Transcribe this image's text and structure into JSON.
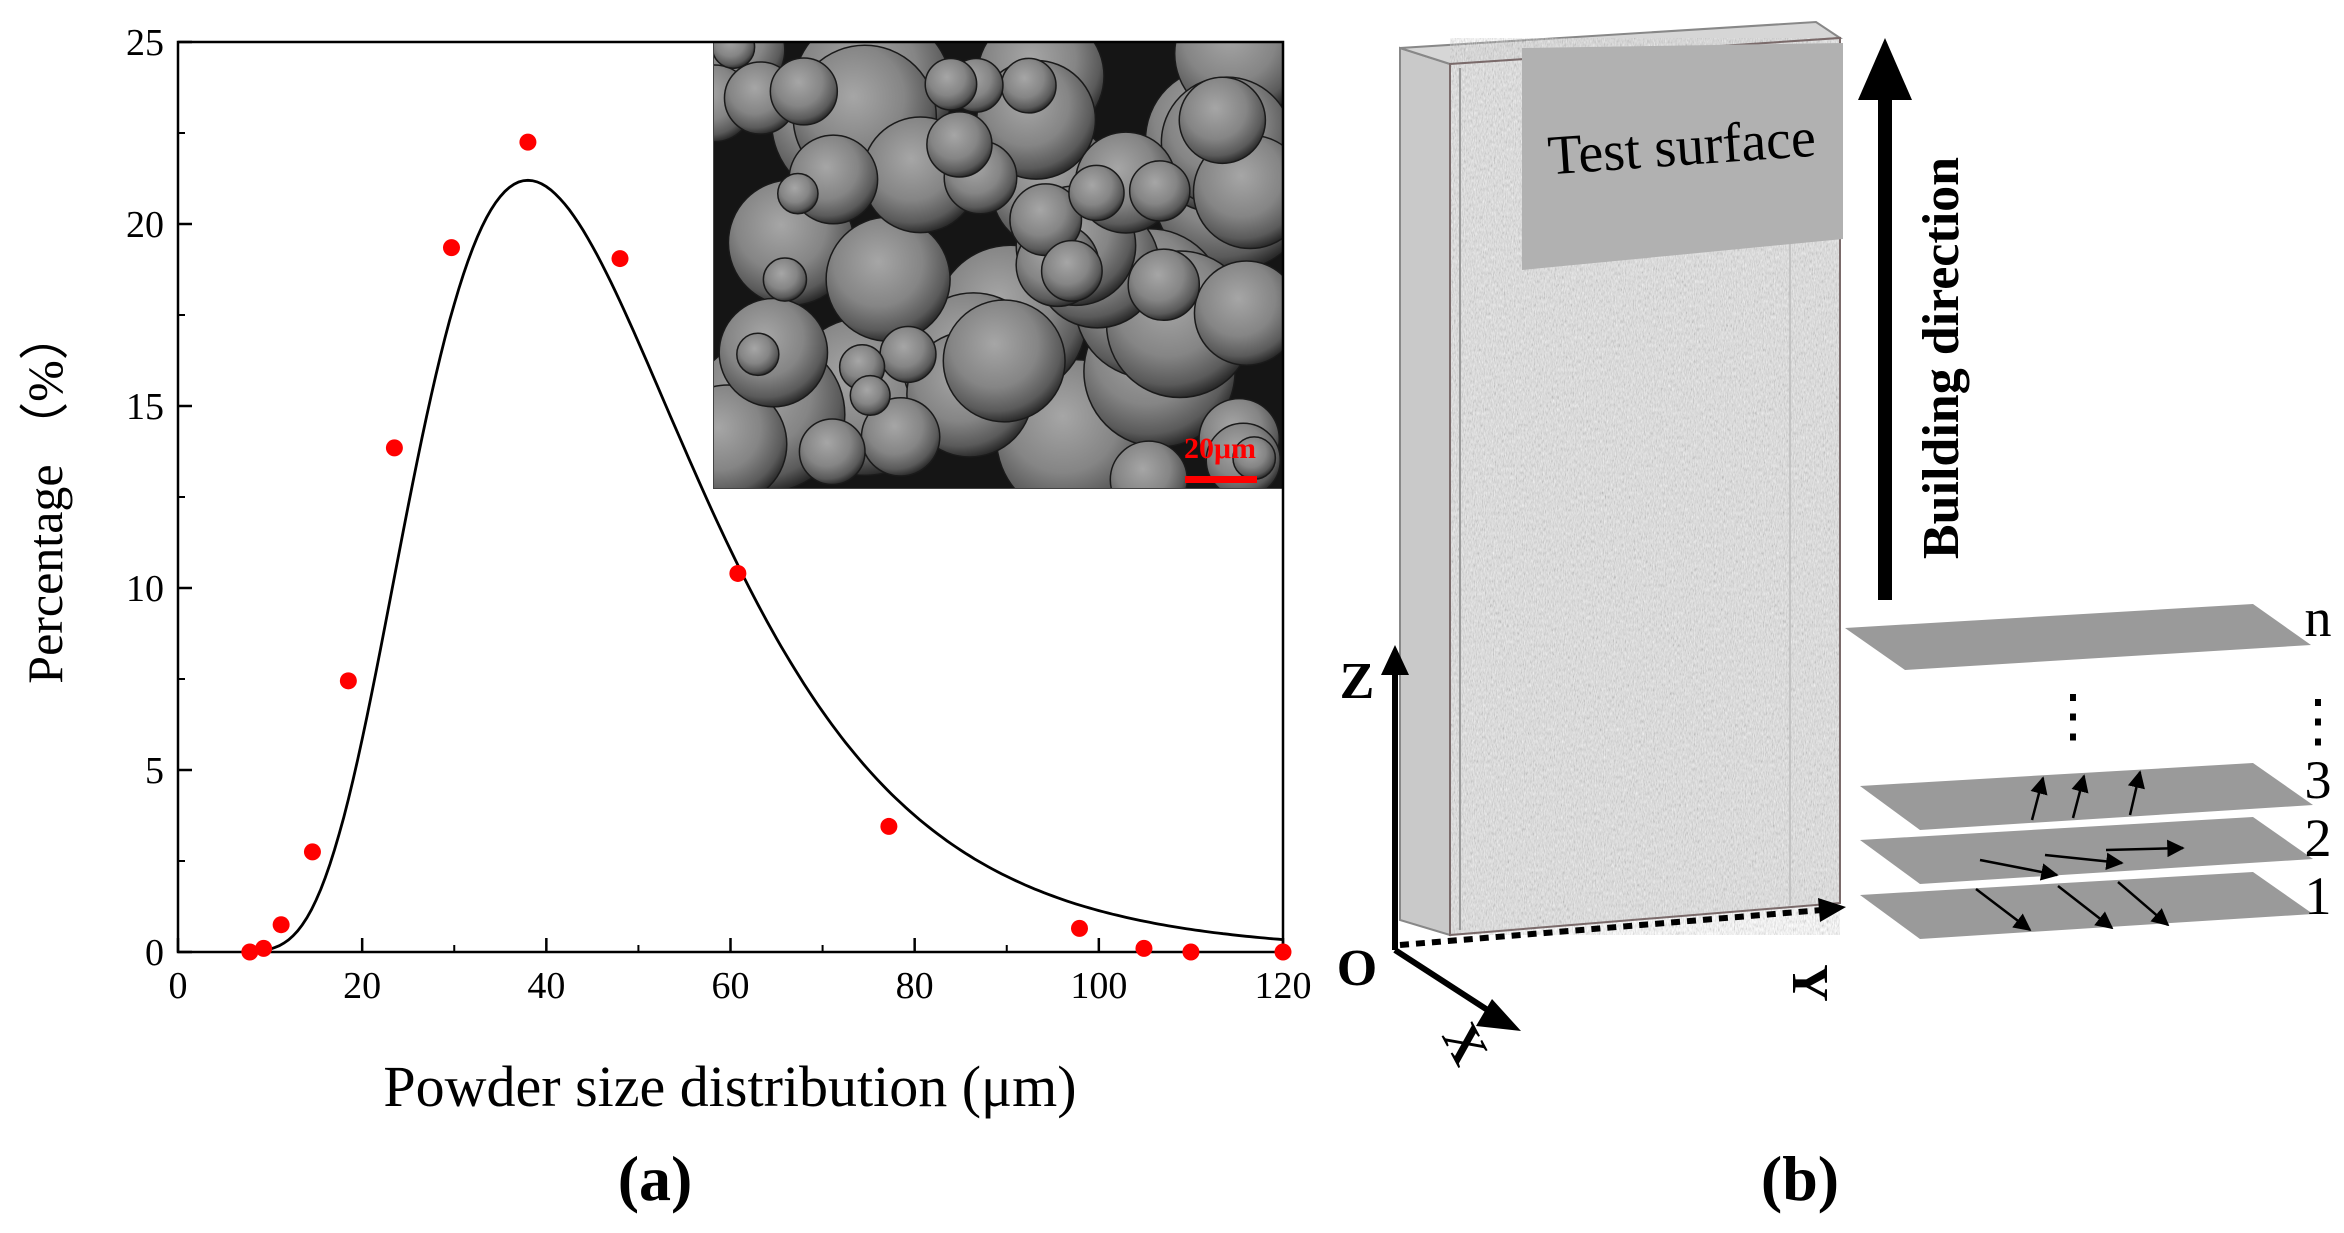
{
  "chart_data": {
    "type": "scatter",
    "title": "",
    "xlabel": "Powder size distribution (μm)",
    "ylabel": "Percentage （%）",
    "xlim": [
      0,
      120
    ],
    "ylim": [
      0,
      25
    ],
    "xticks": [
      "0",
      "20",
      "40",
      "60",
      "80",
      "100",
      "120"
    ],
    "yticks": [
      "0",
      "5",
      "10",
      "15",
      "20",
      "25"
    ],
    "grid": false,
    "legend": "none",
    "points": {
      "x": [
        7.8,
        9.3,
        11.2,
        14.6,
        18.5,
        23.5,
        29.7,
        38.0,
        48.0,
        60.8,
        77.2,
        97.9,
        104.9,
        110.0,
        120.0
      ],
      "y": [
        0.0,
        0.1,
        0.75,
        2.75,
        7.45,
        13.85,
        19.35,
        22.25,
        19.05,
        10.4,
        3.45,
        0.65,
        0.1,
        0.0,
        0.0
      ]
    },
    "fit_curve": {
      "type": "log-normal",
      "peak_x": 38.0,
      "peak_y": 21.2,
      "sigma": 0.4
    },
    "colors": {
      "points": "#ff0000",
      "curve": "#000000",
      "axes": "#000000"
    },
    "inset": {
      "description": "powder",
      "scale_bar": "20μm",
      "scale_color": "#ff0000"
    },
    "panel_label": "(a)"
  },
  "diagram": {
    "panel_label": "(b)",
    "test_surface": "Test surface",
    "building_direction": "Building direction",
    "axis_z": "Z",
    "axis_x": "X",
    "axis_y": "Y",
    "origin": "O",
    "layers": [
      "n",
      "3",
      "2",
      "1"
    ],
    "ellipsis": "⋮",
    "colors": {
      "layer": "#9a9a9a",
      "surface": "#b1b1b1",
      "block_texture_dark": "#8a8a8a",
      "block_texture_light": "#e8e8e8"
    }
  }
}
